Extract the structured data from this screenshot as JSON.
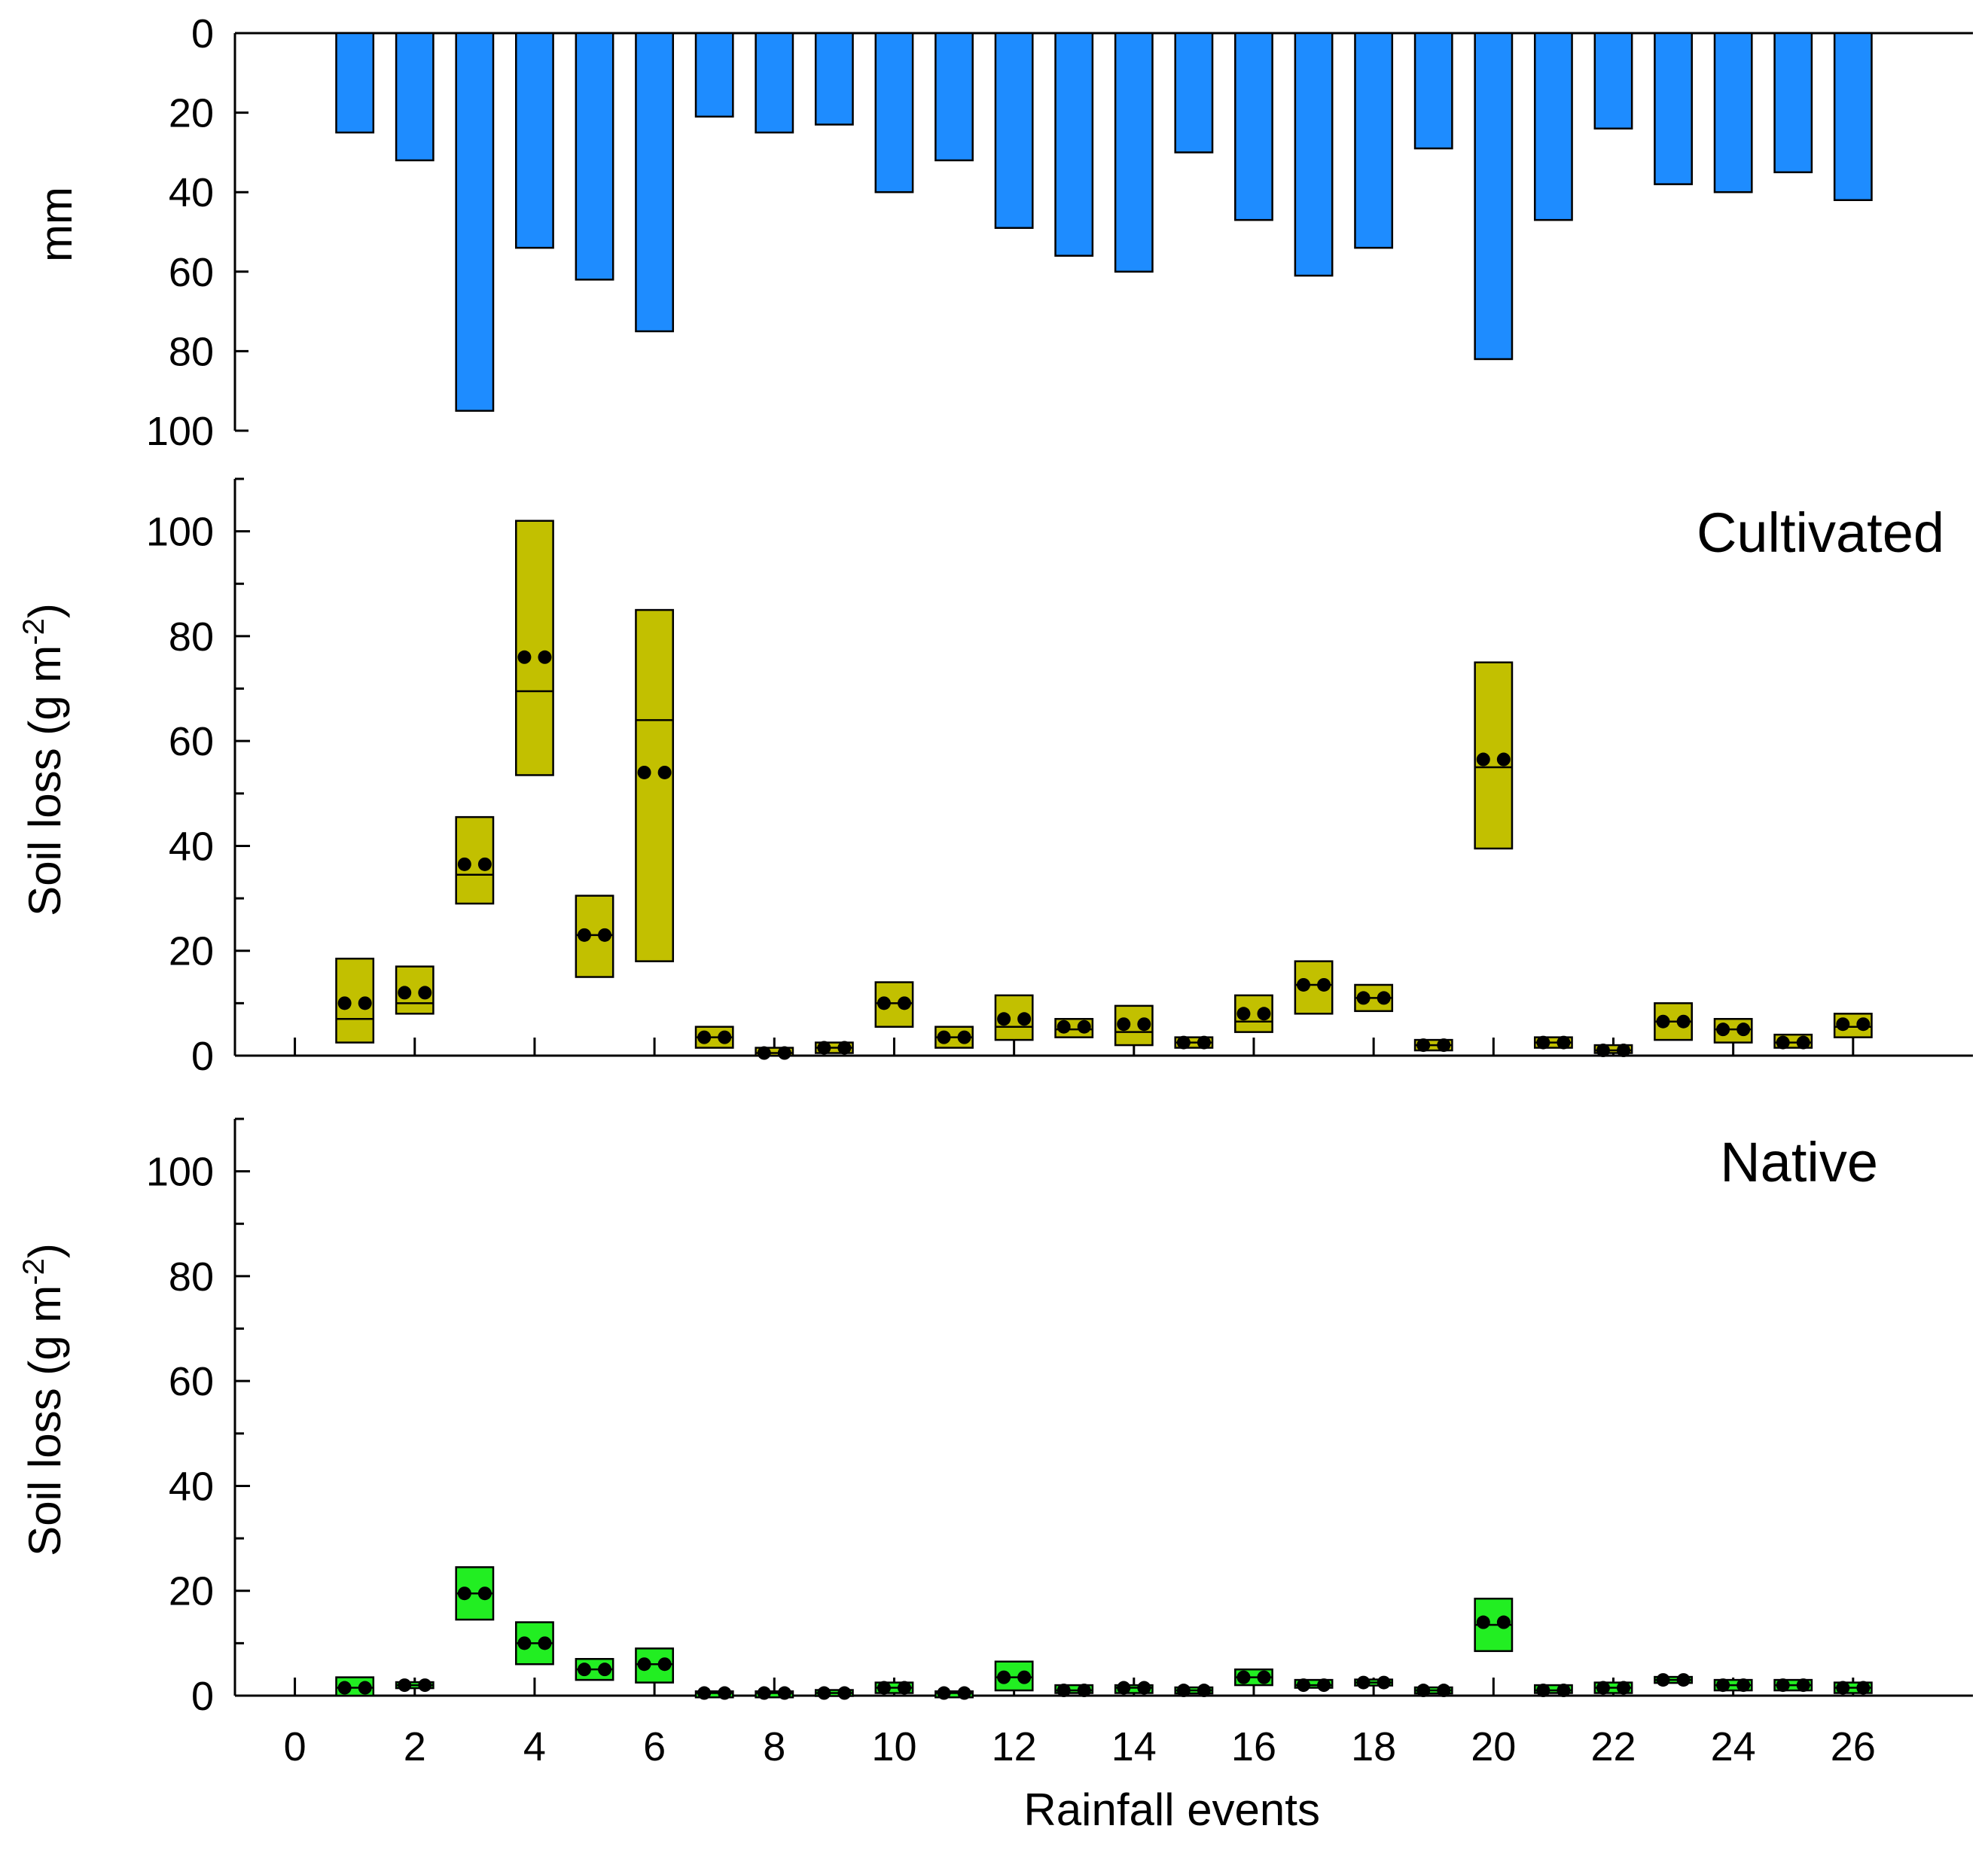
{
  "chart_data": [
    {
      "type": "bar",
      "panel": "rainfall",
      "ylabel": "mm",
      "y_inverted": true,
      "ylim": [
        0,
        100
      ],
      "yticks": [
        0,
        20,
        40,
        60,
        80,
        100
      ],
      "x": [
        1,
        2,
        3,
        4,
        5,
        6,
        7,
        8,
        9,
        10,
        11,
        12,
        13,
        14,
        15,
        16,
        17,
        18,
        19,
        20,
        21,
        22,
        23,
        24,
        25,
        26
      ],
      "values": [
        25,
        32,
        95,
        54,
        62,
        75,
        21,
        25,
        23,
        40,
        32,
        49,
        56,
        60,
        30,
        47,
        61,
        54,
        29,
        82,
        47,
        24,
        38,
        40,
        35,
        42
      ],
      "color": "#1e8cff"
    },
    {
      "type": "box",
      "panel": "cultivated",
      "label": "Cultivated",
      "ylabel": "Soil loss (g m",
      "ylabel_sup": "-2",
      "ylabel_close": ")",
      "ylim": [
        0,
        110
      ],
      "yticks": [
        0,
        20,
        40,
        60,
        80,
        100
      ],
      "color": "#c2c000",
      "x": [
        1,
        2,
        3,
        4,
        5,
        6,
        7,
        8,
        9,
        10,
        11,
        12,
        13,
        14,
        15,
        16,
        17,
        18,
        19,
        20,
        21,
        22,
        23,
        24,
        25,
        26
      ],
      "box_low": [
        2.5,
        8,
        29,
        53.5,
        15,
        18,
        1.5,
        0,
        0.5,
        5.5,
        1.5,
        3,
        3.5,
        2,
        1.5,
        4.5,
        8,
        8.5,
        1,
        39.5,
        1.5,
        0.5,
        3,
        2.5,
        1.5,
        3.5
      ],
      "box_high": [
        18.5,
        17,
        45.5,
        102,
        30.5,
        85,
        5.5,
        1.5,
        2.5,
        14,
        5.5,
        11.5,
        7,
        9.5,
        3.5,
        11.5,
        18,
        13.5,
        3,
        75,
        3.5,
        2,
        10,
        7,
        4,
        8
      ],
      "median": [
        7,
        10,
        34.5,
        69.5,
        23,
        64,
        3.5,
        0.5,
        1.5,
        10,
        3.5,
        5.5,
        5,
        4.5,
        2.5,
        6.5,
        13.5,
        11,
        2,
        55,
        2.5,
        1,
        6.5,
        5,
        2.5,
        5.5
      ],
      "mean": [
        10,
        12,
        36.5,
        76,
        23,
        54,
        3.5,
        0.5,
        1.5,
        10,
        3.5,
        7,
        5.5,
        6,
        2.5,
        8,
        13.5,
        11,
        2,
        56.5,
        2.5,
        1,
        6.5,
        5,
        2.5,
        6
      ]
    },
    {
      "type": "box",
      "panel": "native",
      "label": "Native",
      "xlabel": "Rainfall events",
      "ylabel": "Soil loss (g m",
      "ylabel_sup": "-2",
      "ylabel_close": ")",
      "xlim": [
        0,
        28
      ],
      "xticks": [
        0,
        2,
        4,
        6,
        8,
        10,
        12,
        14,
        16,
        18,
        20,
        22,
        24,
        26
      ],
      "ylim": [
        0,
        110
      ],
      "yticks": [
        0,
        20,
        40,
        60,
        80,
        100
      ],
      "color": "#22ee22",
      "x": [
        1,
        2,
        3,
        4,
        5,
        6,
        7,
        8,
        9,
        10,
        11,
        12,
        13,
        14,
        15,
        16,
        17,
        18,
        19,
        20,
        21,
        22,
        23,
        24,
        25,
        26
      ],
      "box_low": [
        0,
        1.5,
        14.5,
        6,
        3,
        2.5,
        0,
        0,
        0,
        0.5,
        0,
        1,
        0.5,
        0.5,
        0.5,
        2,
        1.5,
        2,
        0.5,
        8.5,
        0.5,
        0.5,
        2.5,
        1,
        1,
        0.5
      ],
      "box_high": [
        3.5,
        2.5,
        24.5,
        14,
        7,
        9,
        0.5,
        0.5,
        1,
        2.5,
        0.5,
        6.5,
        2,
        2,
        1.5,
        5,
        3,
        3,
        1.5,
        18.5,
        2,
        2.5,
        3.5,
        3,
        3,
        2.5
      ],
      "median": [
        1.5,
        2,
        19.5,
        10,
        5,
        6,
        0.5,
        0.5,
        0.5,
        1.5,
        0.5,
        3.5,
        1,
        1.5,
        1,
        3.5,
        2,
        2.5,
        1,
        13.5,
        1,
        1.5,
        3,
        2,
        2,
        1.5
      ],
      "mean": [
        1.5,
        2,
        19.5,
        10,
        5,
        6,
        0.5,
        0.5,
        0.5,
        1.5,
        0.5,
        3.5,
        1,
        1.5,
        1,
        3.5,
        2,
        2.5,
        1,
        14,
        1,
        1.5,
        3,
        2,
        2,
        1.5
      ]
    }
  ]
}
